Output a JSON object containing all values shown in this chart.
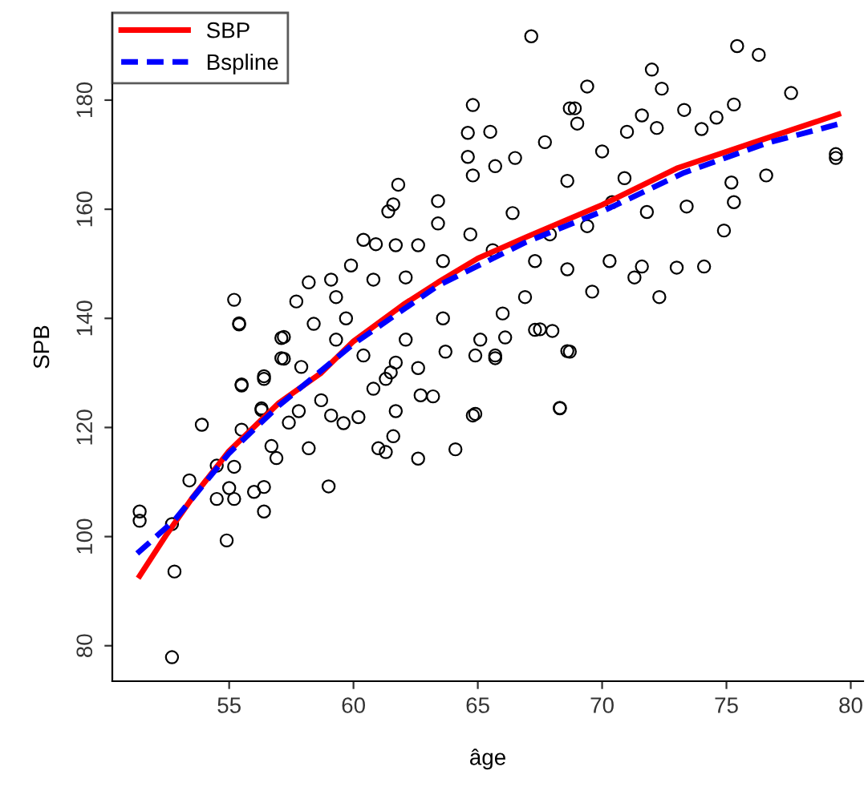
{
  "chart_data": {
    "type": "scatter",
    "xlabel": "âge",
    "ylabel": "SPB",
    "xlim": [
      50.3,
      80.5
    ],
    "ylim": [
      73.5,
      196
    ],
    "xticks": [
      55,
      60,
      65,
      70,
      75,
      80
    ],
    "yticks": [
      80,
      100,
      120,
      140,
      160,
      180
    ],
    "grid": false,
    "legend": "top left",
    "series": [
      {
        "color": "#000000",
        "marker": "circle",
        "x": [
          67.15,
          75.43,
          76.3,
          77.6,
          72.0,
          72.4,
          69.4,
          64.8,
          68.7,
          68.9,
          75.3,
          73.3,
          71.6,
          74.6,
          79.4,
          79.4,
          76.6,
          74.9,
          74.1,
          72.3,
          73.0,
          73.4,
          71.8,
          75.3,
          75.2,
          74.0,
          72.2,
          71.0,
          65.5,
          64.6,
          64.6,
          67.7,
          66.5,
          61.8,
          61.6,
          61.4,
          63.4,
          64.8,
          65.7,
          69.0,
          70.0,
          70.9,
          68.6,
          70.4,
          69.4,
          67.9,
          66.4,
          64.7,
          63.4,
          62.6,
          61.7,
          60.4,
          60.9,
          59.9,
          59.1,
          58.2,
          60.8,
          62.1,
          63.6,
          65.6,
          67.3,
          68.6,
          70.3,
          71.6,
          71.3,
          69.6,
          67.3,
          68.0,
          68.6,
          55.2,
          55.4,
          57.7,
          57.2,
          57.2,
          55.5,
          56.4,
          59.3,
          59.7,
          58.4,
          57.9,
          59.3,
          60.4,
          61.5,
          60.8,
          62.7,
          62.1,
          63.6,
          65.1,
          64.9,
          65.7,
          66.0,
          66.9,
          68.3,
          64.9,
          61.7,
          56.3,
          55.4,
          57.1,
          57.1,
          56.4,
          55.5,
          53.9,
          56.3,
          55.5,
          57.4,
          58.2,
          56.7,
          56.9,
          59.0,
          61.0,
          61.3,
          61.6,
          62.6,
          64.1,
          64.8,
          68.3,
          68.7,
          63.2,
          59.6,
          60.2,
          53.4,
          54.5,
          54.5,
          55.2,
          55.0,
          56.0,
          56.4,
          56.4,
          54.9,
          51.4,
          51.4,
          52.7,
          52.8,
          52.7,
          55.2,
          58.7,
          59.1,
          57.8,
          61.3,
          62.6,
          61.7,
          63.7,
          65.7,
          66.1,
          67.5
        ],
        "values": [
          191.7,
          189.9,
          188.3,
          181.3,
          185.6,
          182.1,
          182.5,
          179.1,
          178.5,
          178.5,
          179.2,
          178.2,
          177.2,
          176.8,
          170.1,
          169.4,
          166.2,
          156.1,
          149.5,
          143.9,
          149.3,
          160.5,
          159.5,
          161.3,
          164.9,
          174.7,
          174.9,
          174.2,
          174.2,
          174.0,
          169.6,
          172.3,
          169.4,
          164.5,
          160.9,
          159.6,
          161.5,
          166.2,
          167.9,
          175.7,
          170.6,
          165.7,
          165.2,
          161.3,
          156.9,
          155.4,
          159.3,
          155.4,
          157.4,
          153.4,
          153.4,
          154.4,
          153.6,
          149.7,
          147.1,
          146.6,
          147.1,
          147.5,
          150.5,
          152.5,
          150.5,
          149.0,
          150.5,
          149.5,
          147.5,
          144.9,
          137.9,
          137.7,
          134.0,
          143.4,
          139.1,
          143.1,
          136.6,
          132.6,
          127.9,
          128.9,
          143.9,
          140.0,
          139.0,
          131.1,
          136.1,
          133.2,
          130.1,
          127.1,
          125.9,
          136.1,
          140.0,
          136.1,
          133.2,
          133.2,
          140.9,
          143.9,
          123.5,
          122.5,
          123.0,
          123.5,
          138.9,
          136.4,
          132.7,
          129.4,
          127.7,
          120.5,
          123.2,
          119.6,
          120.9,
          116.2,
          116.6,
          114.4,
          109.2,
          116.2,
          115.5,
          118.4,
          114.3,
          116.0,
          122.2,
          123.6,
          133.9,
          125.7,
          120.8,
          121.9,
          110.3,
          113.0,
          106.9,
          106.9,
          108.9,
          108.2,
          109.1,
          104.6,
          99.3,
          104.6,
          102.9,
          102.3,
          93.6,
          77.9,
          112.8,
          125.0,
          122.2,
          123.0,
          128.9,
          130.9,
          131.9,
          133.9,
          132.7,
          136.5,
          138.0
        ]
      },
      {
        "type": "line",
        "name": "SBP",
        "color": "#ff0000",
        "line_style": "solid",
        "marker": "none",
        "x": [
          51.4,
          52.5,
          53.5,
          55,
          57,
          58.7,
          60,
          62,
          63.4,
          65,
          67,
          70,
          73,
          76.6,
          79.5
        ],
        "values": [
          92.8,
          100.5,
          107,
          115.7,
          124.5,
          130,
          135.8,
          142.5,
          146.6,
          151,
          155,
          160.8,
          167.5,
          173,
          177.4
        ]
      },
      {
        "type": "line",
        "name": "Bspline",
        "color": "#0000ff",
        "line_style": "dashed",
        "marker": "none",
        "x": [
          51.3,
          52.8,
          55,
          57,
          60,
          63.4,
          66.9,
          70.1,
          73.3,
          76.6,
          79.5
        ],
        "values": [
          96.9,
          103,
          115.3,
          124,
          135.3,
          146,
          153.9,
          159.8,
          166.7,
          172.1,
          175.6
        ]
      }
    ]
  }
}
